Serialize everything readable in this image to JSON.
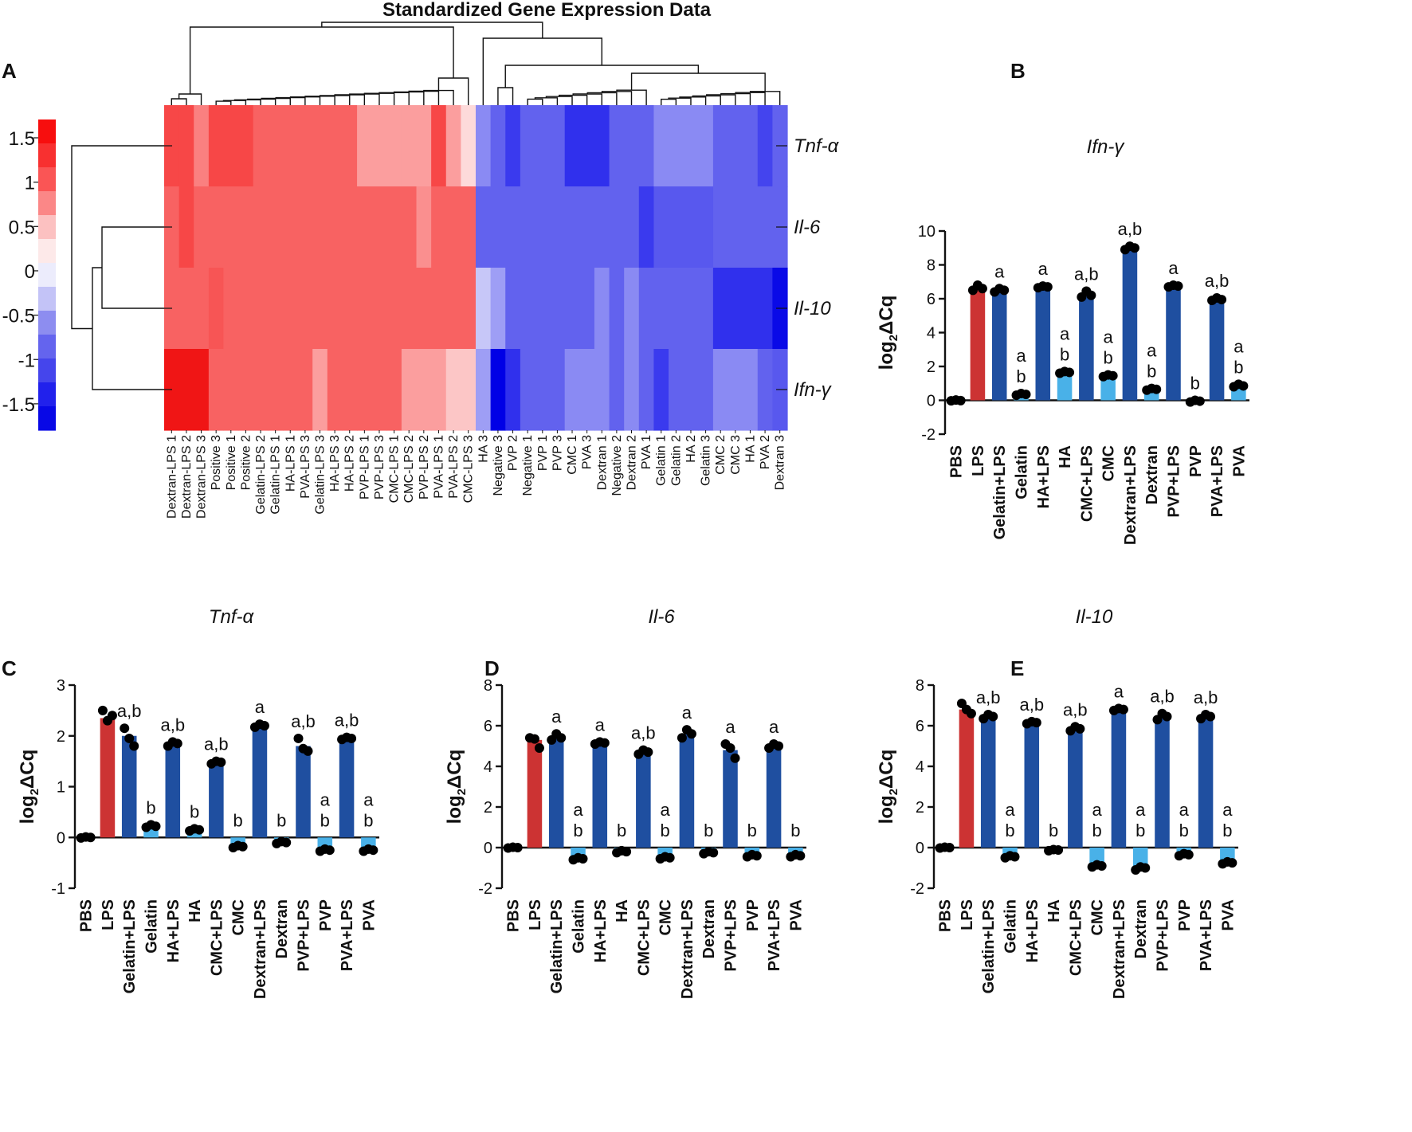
{
  "panels": {
    "A": "A",
    "B": "B",
    "C": "C",
    "D": "D",
    "E": "E"
  },
  "heatmap": {
    "title": "Standardized Gene Expression Data",
    "colorbar_ticks": [
      "1.5",
      "1",
      "0.5",
      "0",
      "-0.5",
      "-1",
      "-1.5"
    ],
    "colorbar_values": [
      1.5,
      1,
      0.5,
      0,
      -0.5,
      -1,
      -1.5
    ],
    "colorbar_colors": [
      "#f70e0e",
      "#f83030",
      "#fa5555",
      "#fb8787",
      "#fcc1c1",
      "#fde9e9",
      "#ececfc",
      "#c3c3f7",
      "#8d8df0",
      "#6464ee",
      "#4545ec",
      "#2121ec",
      "#0808e6"
    ],
    "genes": [
      "Tnf-α",
      "Il-6",
      "Il-10",
      "Ifn-γ"
    ],
    "columns": [
      "Dextran-LPS 1",
      "Dextran-LPS 2",
      "Dextran-LPS 3",
      "Positive 3",
      "Positive 1",
      "Positive 2",
      "Gelatin-LPS 2",
      "Gelatin-LPS 1",
      "HA-LPS 1",
      "PVA-LPS 3",
      "Gelatin-LPS 3",
      "HA-LPS 3",
      "HA-LPS 2",
      "PVP-LPS 1",
      "PVP-LPS 3",
      "CMC-LPS 1",
      "CMC-LPS 2",
      "PVP-LPS 2",
      "PVA-LPS 1",
      "PVA-LPS 2",
      "CMC-LPS 3",
      "HA 3",
      "Negative 3",
      "PVP 2",
      "Negative 1",
      "PVP 1",
      "PVP 3",
      "CMC 1",
      "PVA 3",
      "Dextran 1",
      "Negative 2",
      "Dextran 2",
      "PVA 1",
      "Gelatin 1",
      "Gelatin 2",
      "HA 2",
      "Gelatin 3",
      "CMC 2",
      "CMC 3",
      "HA 1",
      "PVA 2",
      "Dextran 3"
    ],
    "values": [
      [
        1.1,
        1.1,
        0.7,
        1.1,
        1.1,
        1.1,
        0.9,
        0.9,
        0.9,
        0.9,
        0.9,
        0.9,
        0.9,
        0.5,
        0.5,
        0.5,
        0.5,
        0.5,
        1.1,
        0.5,
        0.2,
        -0.6,
        -0.8,
        -1.2,
        -0.8,
        -0.8,
        -0.8,
        -1.3,
        -1.3,
        -1.3,
        -0.8,
        -0.8,
        -0.8,
        -0.6,
        -0.6,
        -0.6,
        -0.6,
        -0.8,
        -0.8,
        -0.8,
        -1.1,
        -0.8
      ],
      [
        0.9,
        1.1,
        0.9,
        0.9,
        0.9,
        0.9,
        0.9,
        0.9,
        0.9,
        0.9,
        0.9,
        0.9,
        0.9,
        0.9,
        0.9,
        0.9,
        0.9,
        0.6,
        0.9,
        0.9,
        0.9,
        -0.8,
        -0.8,
        -0.8,
        -0.8,
        -0.8,
        -0.8,
        -0.8,
        -0.8,
        -0.8,
        -0.8,
        -0.8,
        -1.2,
        -0.9,
        -0.9,
        -0.9,
        -0.9,
        -0.8,
        -0.8,
        -0.8,
        -0.8,
        -0.8
      ],
      [
        0.9,
        0.9,
        0.9,
        1.0,
        0.9,
        0.9,
        0.9,
        0.9,
        0.9,
        0.9,
        0.9,
        0.9,
        0.9,
        0.9,
        0.9,
        0.9,
        0.9,
        0.9,
        0.9,
        0.9,
        0.9,
        -0.3,
        -0.5,
        -0.8,
        -0.8,
        -0.8,
        -0.8,
        -0.8,
        -0.8,
        -0.6,
        -0.8,
        -0.6,
        -0.8,
        -0.8,
        -0.8,
        -0.8,
        -0.8,
        -1.3,
        -1.3,
        -1.3,
        -1.3,
        -1.7
      ],
      [
        1.7,
        1.7,
        1.7,
        0.9,
        0.9,
        0.9,
        0.9,
        0.9,
        0.9,
        0.9,
        0.5,
        0.9,
        0.9,
        0.9,
        0.9,
        0.9,
        0.5,
        0.5,
        0.5,
        0.3,
        0.3,
        -0.5,
        -1.8,
        -1.3,
        -0.8,
        -0.8,
        -0.8,
        -0.6,
        -0.6,
        -0.6,
        -0.8,
        -0.6,
        -0.8,
        -1.2,
        -0.8,
        -0.8,
        -0.8,
        -0.6,
        -0.6,
        -0.6,
        -0.8,
        -0.9
      ]
    ]
  },
  "bar_common": {
    "categories": [
      "PBS",
      "LPS",
      "Gelatin+LPS",
      "Gelatin",
      "HA+LPS",
      "HA",
      "CMC+LPS",
      "CMC",
      "Dextran+LPS",
      "Dextran",
      "PVP+LPS",
      "PVP",
      "PVA+LPS",
      "PVA"
    ],
    "ylabel_main": "log",
    "ylabel_sub": "2",
    "ylabel_tail": "ΔCq",
    "colors": {
      "lps": "#cc3333",
      "treated": "#1f4fa0",
      "untreated": "#49b1e8",
      "pbs": "#111111"
    }
  },
  "chart_data": [
    {
      "id": "B",
      "type": "bar",
      "title": "Ifn-γ",
      "ylim": [
        -2,
        10
      ],
      "yticks": [
        -2,
        0,
        2,
        4,
        6,
        8,
        10
      ],
      "ytick_labels": [
        "-2",
        "0",
        "2",
        "4",
        "6",
        "8",
        "10"
      ],
      "values": [
        0.0,
        6.6,
        6.5,
        0.35,
        6.7,
        1.65,
        6.25,
        1.45,
        9.0,
        0.65,
        6.75,
        -0.05,
        5.95,
        0.85
      ],
      "points": [
        [
          -0.03,
          0.02,
          -0.02
        ],
        [
          6.5,
          6.8,
          6.6
        ],
        [
          6.4,
          6.6,
          6.5
        ],
        [
          0.3,
          0.4,
          0.35
        ],
        [
          6.65,
          6.75,
          6.7
        ],
        [
          1.6,
          1.7,
          1.65
        ],
        [
          6.1,
          6.45,
          6.2
        ],
        [
          1.4,
          1.5,
          1.45
        ],
        [
          8.9,
          9.1,
          9.0
        ],
        [
          0.6,
          0.7,
          0.65
        ],
        [
          6.7,
          6.8,
          6.75
        ],
        [
          -0.1,
          0.0,
          -0.05
        ],
        [
          5.9,
          6.05,
          5.95
        ],
        [
          0.8,
          0.95,
          0.85
        ]
      ],
      "sig": [
        "",
        "",
        "a",
        "a\nb",
        "a",
        "a\nb",
        "a,b",
        "a\nb",
        "a,b",
        "a\nb",
        "a",
        "b",
        "a,b",
        "a\nb"
      ]
    },
    {
      "id": "C",
      "type": "bar",
      "title": "Tnf-α",
      "ylim": [
        -1,
        3
      ],
      "yticks": [
        -1,
        0,
        1,
        2,
        3
      ],
      "ytick_labels": [
        "-1",
        "0",
        "1",
        "2",
        "3"
      ],
      "values": [
        0.0,
        2.35,
        2.0,
        0.22,
        1.85,
        0.15,
        1.48,
        -0.18,
        2.2,
        -0.1,
        1.8,
        -0.25,
        1.95,
        -0.25
      ],
      "points": [
        [
          -0.01,
          0.01,
          0.0
        ],
        [
          2.5,
          2.3,
          2.4
        ],
        [
          2.15,
          1.95,
          1.8
        ],
        [
          0.2,
          0.25,
          0.22
        ],
        [
          1.8,
          1.88,
          1.85
        ],
        [
          0.13,
          0.17,
          0.15
        ],
        [
          1.45,
          1.5,
          1.48
        ],
        [
          -0.2,
          -0.16,
          -0.18
        ],
        [
          2.17,
          2.23,
          2.2
        ],
        [
          -0.12,
          -0.08,
          -0.1
        ],
        [
          1.95,
          1.75,
          1.7
        ],
        [
          -0.27,
          -0.23,
          -0.25
        ],
        [
          1.93,
          1.97,
          1.95
        ],
        [
          -0.27,
          -0.23,
          -0.25
        ]
      ],
      "sig": [
        "",
        "",
        "a,b",
        "b",
        "a,b",
        "b",
        "a,b",
        "b",
        "a",
        "b",
        "a,b",
        "a\nb",
        "a,b",
        "a\nb"
      ]
    },
    {
      "id": "D",
      "type": "bar",
      "title": "Il-6",
      "ylim": [
        -2,
        8
      ],
      "yticks": [
        -2,
        0,
        2,
        4,
        6,
        8
      ],
      "ytick_labels": [
        "-2",
        "0",
        "2",
        "4",
        "6",
        "8"
      ],
      "values": [
        0.0,
        5.3,
        5.4,
        -0.55,
        5.15,
        -0.2,
        4.7,
        -0.5,
        5.6,
        -0.25,
        4.8,
        -0.4,
        5.0,
        -0.4
      ],
      "points": [
        [
          -0.02,
          0.02,
          0.0
        ],
        [
          5.4,
          5.35,
          4.9
        ],
        [
          5.3,
          5.6,
          5.4
        ],
        [
          -0.6,
          -0.5,
          -0.55
        ],
        [
          5.1,
          5.2,
          5.15
        ],
        [
          -0.25,
          -0.15,
          -0.2
        ],
        [
          4.6,
          4.8,
          4.7
        ],
        [
          -0.55,
          -0.45,
          -0.5
        ],
        [
          5.4,
          5.8,
          5.6
        ],
        [
          -0.3,
          -0.2,
          -0.25
        ],
        [
          5.1,
          4.9,
          4.4
        ],
        [
          -0.45,
          -0.35,
          -0.4
        ],
        [
          4.9,
          5.1,
          5.0
        ],
        [
          -0.45,
          -0.35,
          -0.4
        ]
      ],
      "sig": [
        "",
        "",
        "a",
        "a\nb",
        "a",
        "b",
        "a,b",
        "a\nb",
        "a",
        "b",
        "a",
        "b",
        "a",
        "b"
      ]
    },
    {
      "id": "E",
      "type": "bar",
      "title": "Il-10",
      "ylim": [
        -2,
        8
      ],
      "yticks": [
        -2,
        0,
        2,
        4,
        6,
        8
      ],
      "ytick_labels": [
        "-2",
        "0",
        "2",
        "4",
        "6",
        "8"
      ],
      "values": [
        0.0,
        6.8,
        6.45,
        -0.45,
        6.15,
        -0.12,
        5.85,
        -0.9,
        6.8,
        -1.0,
        6.45,
        -0.35,
        6.45,
        -0.75
      ],
      "points": [
        [
          -0.02,
          0.02,
          0.0
        ],
        [
          7.1,
          6.8,
          6.6
        ],
        [
          6.35,
          6.55,
          6.45
        ],
        [
          -0.5,
          -0.4,
          -0.45
        ],
        [
          6.1,
          6.2,
          6.15
        ],
        [
          -0.15,
          -0.1,
          -0.12
        ],
        [
          5.75,
          5.95,
          5.85
        ],
        [
          -0.95,
          -0.85,
          -0.9
        ],
        [
          6.75,
          6.85,
          6.8
        ],
        [
          -1.1,
          -0.95,
          -1.0
        ],
        [
          6.3,
          6.6,
          6.45
        ],
        [
          -0.4,
          -0.3,
          -0.35
        ],
        [
          6.35,
          6.55,
          6.45
        ],
        [
          -0.8,
          -0.7,
          -0.75
        ]
      ],
      "sig": [
        "",
        "",
        "a,b",
        "a\nb",
        "a,b",
        "b",
        "a,b",
        "a\nb",
        "a",
        "a\nb",
        "a,b",
        "a\nb",
        "a,b",
        "a\nb"
      ]
    }
  ]
}
